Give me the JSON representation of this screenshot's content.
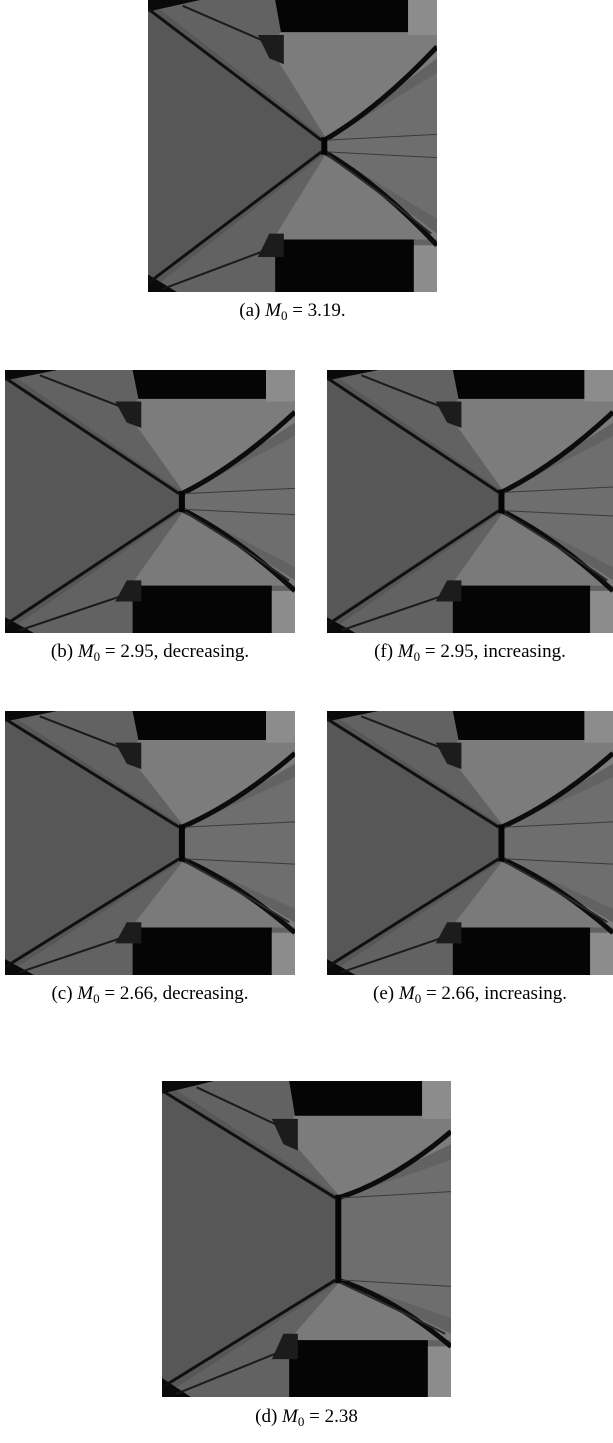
{
  "figure": {
    "panels": [
      {
        "label": "(a)",
        "symbol": "M",
        "subscript": "0",
        "text": "= 3.19."
      },
      {
        "label": "(b)",
        "symbol": "M",
        "subscript": "0",
        "text": "= 2.95, decreasing."
      },
      {
        "label": "(f)",
        "symbol": "M",
        "subscript": "0",
        "text": "= 2.95, increasing."
      },
      {
        "label": "(c)",
        "symbol": "M",
        "subscript": "0",
        "text": "= 2.66, decreasing."
      },
      {
        "label": "(e)",
        "symbol": "M",
        "subscript": "0",
        "text": "= 2.66, increasing."
      },
      {
        "label": "(d)",
        "symbol": "M",
        "subscript": "0",
        "text": "= 2.38"
      }
    ]
  }
}
